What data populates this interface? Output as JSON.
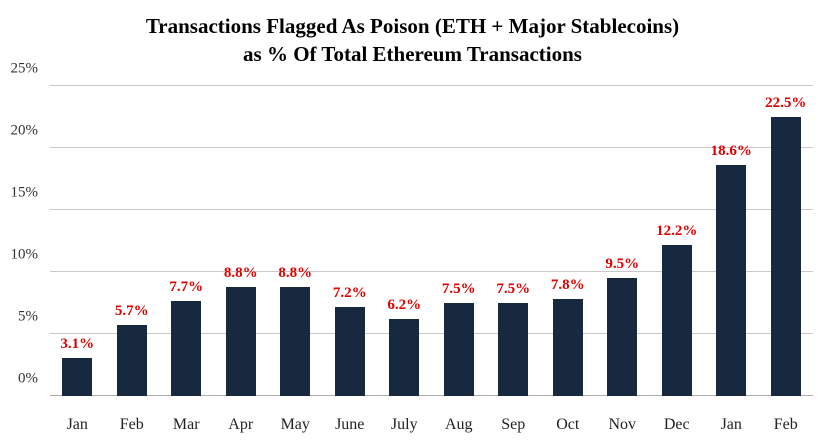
{
  "chart_data": {
    "type": "bar",
    "title": "Transactions Flagged As Poison (ETH + Major Stablecoins) as % Of Total Ethereum Transactions",
    "title_lines": [
      "Transactions Flagged As Poison (ETH + Major Stablecoins)",
      "as % Of Total Ethereum Transactions"
    ],
    "categories": [
      "Jan",
      "Feb",
      "Mar",
      "Apr",
      "May",
      "June",
      "July",
      "Aug",
      "Sep",
      "Oct",
      "Nov",
      "Dec",
      "Jan",
      "Feb"
    ],
    "values": [
      3.1,
      5.7,
      7.7,
      8.8,
      8.8,
      7.2,
      6.2,
      7.5,
      7.5,
      7.8,
      9.5,
      12.2,
      18.6,
      22.5
    ],
    "data_labels": [
      "3.1%",
      "5.7%",
      "7.7%",
      "8.8%",
      "8.8%",
      "7.2%",
      "6.2%",
      "7.5%",
      "7.5%",
      "7.8%",
      "9.5%",
      "12.2%",
      "18.6%",
      "22.5%"
    ],
    "xlabel": "",
    "ylabel": "",
    "ylim": [
      0,
      25
    ],
    "yticks": [
      0,
      5,
      10,
      15,
      20,
      25
    ],
    "ytick_labels": [
      "0%",
      "5%",
      "10%",
      "15%",
      "20%",
      "25%"
    ],
    "grid": "horizontal",
    "legend": "none",
    "colors": {
      "bar": "#16293f",
      "data_label": "#e00000",
      "gridline": "#c9c9c9",
      "axis_text": "#333333",
      "title_text": "#000000",
      "background": "#ffffff"
    }
  }
}
